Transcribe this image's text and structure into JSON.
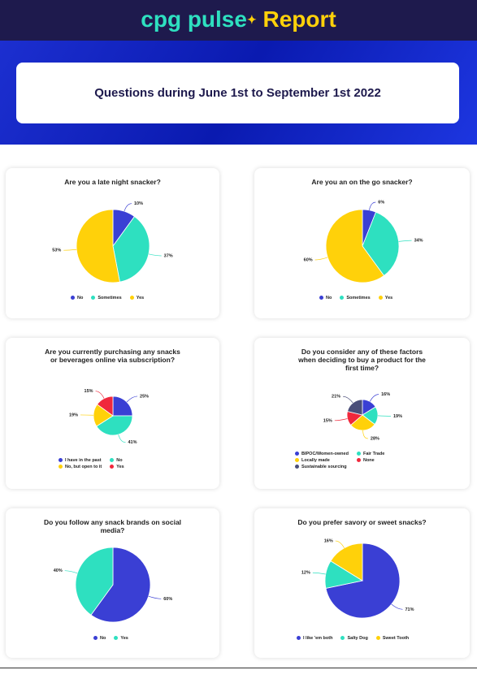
{
  "header": {
    "brand": "cpg pulse",
    "title": "Report",
    "subtitle": "Questions during June 1st to September 1st 2022"
  },
  "chart_data": [
    {
      "type": "pie",
      "title": "Are you a late night snacker?",
      "categories": [
        "No",
        "Sometimes",
        "Yes"
      ],
      "values": [
        10,
        37,
        53
      ],
      "value_labels": [
        "10%",
        "37%",
        "53%"
      ],
      "colors": [
        "#3a3fd4",
        "#2ee0c0",
        "#ffd10a"
      ]
    },
    {
      "type": "pie",
      "title": "Are you an on the go snacker?",
      "categories": [
        "No",
        "Sometimes",
        "Yes"
      ],
      "values": [
        6,
        34,
        60
      ],
      "value_labels": [
        "6%",
        "34%",
        "60%"
      ],
      "colors": [
        "#3a3fd4",
        "#2ee0c0",
        "#ffd10a"
      ]
    },
    {
      "type": "pie",
      "title": "Are you currently purchasing any snacks or beverages online via subscription?",
      "categories": [
        "I have in the past",
        "No",
        "No, but open to it",
        "Yes"
      ],
      "values": [
        25,
        41,
        19,
        15
      ],
      "value_labels": [
        "25%",
        "41%",
        "19%",
        "15%"
      ],
      "colors": [
        "#3a3fd4",
        "#2ee0c0",
        "#ffd10a",
        "#f0283c"
      ]
    },
    {
      "type": "pie",
      "title": "Do you consider any of these factors when deciding to buy a product for the first time?",
      "categories": [
        "BIPOC/Women-owned",
        "Fair Trade",
        "Locally made",
        "None",
        "Sustainable sourcing"
      ],
      "values": [
        16,
        19,
        28,
        15,
        21
      ],
      "value_labels": [
        "16%",
        "19%",
        "28%",
        "15%",
        "21%"
      ],
      "colors": [
        "#3a3fd4",
        "#2ee0c0",
        "#ffd10a",
        "#f0283c",
        "#4a4e7a"
      ]
    },
    {
      "type": "pie",
      "title": "Do you follow any snack brands on social media?",
      "categories": [
        "No",
        "Yes"
      ],
      "values": [
        60,
        40
      ],
      "value_labels": [
        "60%",
        "40%"
      ],
      "colors": [
        "#3a3fd4",
        "#2ee0c0"
      ]
    },
    {
      "type": "pie",
      "title": "Do you prefer savory or sweet snacks?",
      "categories": [
        "I like 'em both",
        "Salty Dog",
        "Sweet Tooth"
      ],
      "values": [
        71,
        12,
        16
      ],
      "value_labels": [
        "71%",
        "12%",
        "16%"
      ],
      "colors": [
        "#3a3fd4",
        "#2ee0c0",
        "#ffd10a"
      ]
    }
  ]
}
